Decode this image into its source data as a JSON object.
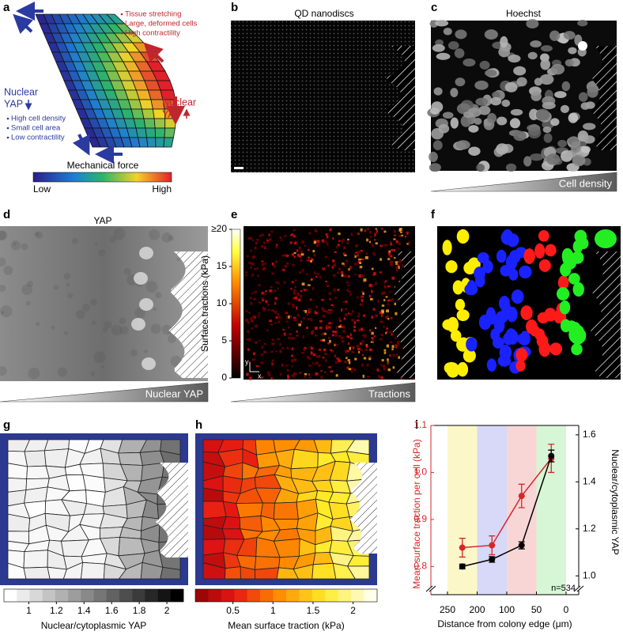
{
  "panels": {
    "a": {
      "label": "a",
      "bullets_high": [
        "Tissue stretching",
        "Large, deformed cells",
        "High contractility"
      ],
      "nuclear_yap_high": [
        "Nuclear",
        "YAP"
      ],
      "nuclear_yap_low": [
        "Nuclear",
        "YAP"
      ],
      "bullets_low": [
        "High cell density",
        "Small cell area",
        "Low contractility"
      ],
      "colorbar_title": "Mechanical force",
      "colorbar_low": "Low",
      "colorbar_high": "High"
    },
    "b": {
      "label": "b",
      "title": "QD nanodiscs"
    },
    "c": {
      "label": "c",
      "title": "Hoechst",
      "wedge": "Cell density"
    },
    "d": {
      "label": "d",
      "title": "YAP",
      "wedge": "Nuclear YAP"
    },
    "e": {
      "label": "e",
      "colorbar_label": "Surface tractions (kPa)",
      "colorbar_lim": [
        0,
        20
      ],
      "colorbar_ticks": [
        0,
        5,
        10,
        15,
        {
          "value": 20,
          "label": "≥20"
        }
      ],
      "axis_y": "y",
      "axis_x": "x",
      "wedge": "Tractions"
    },
    "f": {
      "label": "f"
    },
    "g": {
      "label": "g",
      "colorbar_label": "Nuclear/cytoplasmic YAP",
      "colorbar_lim": [
        0.82,
        2.12
      ],
      "colorbar_ticks": [
        1,
        1.2,
        1.4,
        1.6,
        1.8,
        2
      ]
    },
    "h": {
      "label": "h",
      "colorbar_label": "Mean surface traction (kPa)",
      "colorbar_lim": [
        0.03,
        2.3
      ],
      "colorbar_ticks": [
        0.5,
        1,
        1.5,
        2
      ]
    },
    "i": {
      "label": "i"
    }
  },
  "chart_data": {
    "type": "line",
    "xlabel": "Distance from colony edge (μm)",
    "ylabel": "Mean surface traction per cell (kPa)",
    "y2label": "Nuclear/cytoplasmic YAP",
    "x": [
      225,
      150,
      75,
      25
    ],
    "xlim": [
      278,
      -21
    ],
    "xticks": [
      250,
      200,
      100,
      50,
      0
    ],
    "band_colors": [
      "#fbf7c9",
      "#d8d8f8",
      "#f9d6d6",
      "#d6f6d6"
    ],
    "ylim": [
      0.74,
      1.1
    ],
    "yticks": [
      0.8,
      0.9,
      {
        "value": 1,
        "label": "1.0"
      },
      1.1
    ],
    "y2lim": [
      0.92,
      1.64
    ],
    "y2ticks": [
      {
        "value": 1,
        "label": "1.0"
      },
      1.2,
      1.4,
      1.6
    ],
    "series": [
      {
        "color": "#d62728",
        "values": [
          0.84,
          0.845,
          0.95,
          1.03
        ],
        "errors": [
          0.02,
          0.02,
          0.025,
          0.03
        ]
      },
      {
        "color": "#000000",
        "axis": "y2",
        "values": [
          1.04,
          1.07,
          1.13,
          1.51
        ],
        "errors": [
          0.01,
          0.012,
          0.015,
          0.025
        ]
      }
    ],
    "annotation": "n=534"
  }
}
